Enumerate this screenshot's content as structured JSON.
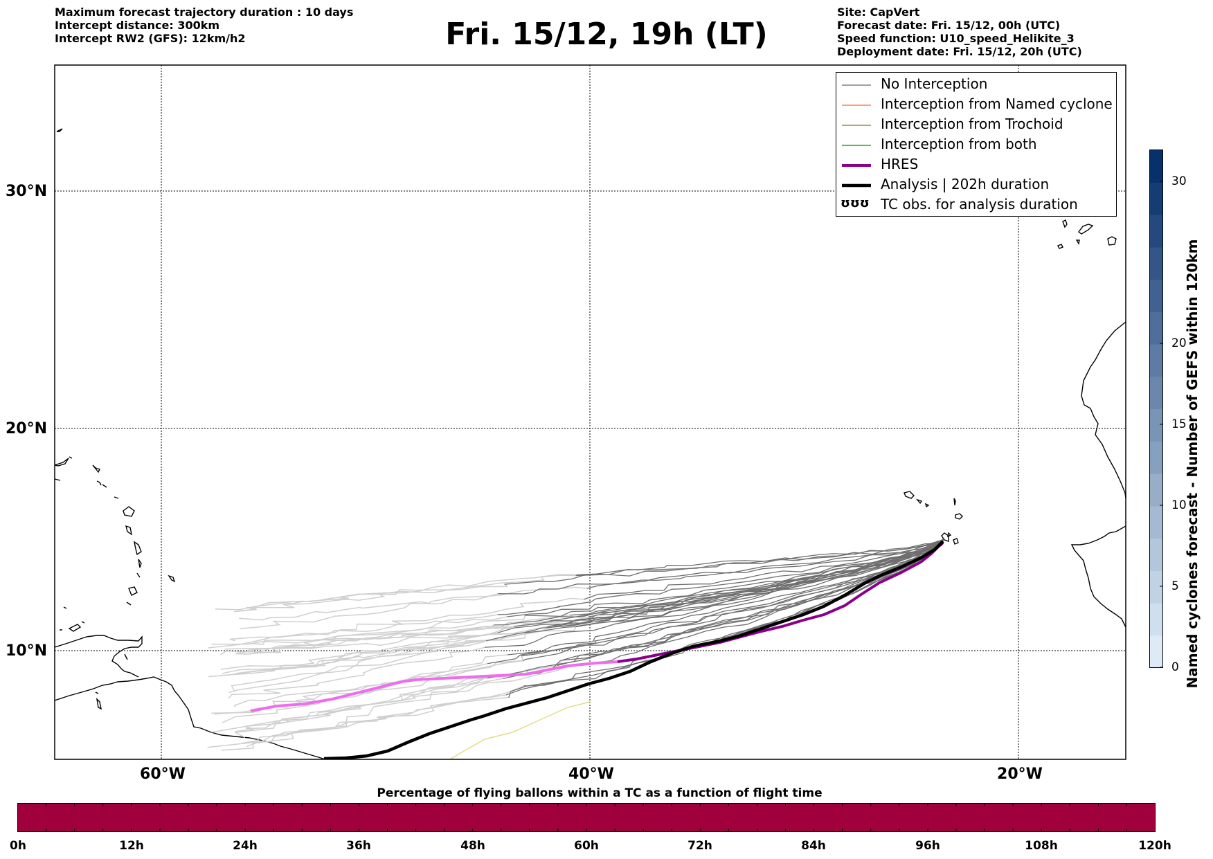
{
  "header_left": {
    "line1": "Maximum forecast trajectory duration : 10 days",
    "line2": "Intercept distance: 300km",
    "line3": "Intercept RW2 (GFS):  12km/h2"
  },
  "title": "Fri. 15/12, 19h (LT)",
  "header_right": {
    "line1": "Site: CapVert",
    "line2": "Forecast date: Fri. 15/12, 00h (UTC)",
    "line3": "Speed function: U10_speed_Helikite_3",
    "line4": "Deployment date: Fri. 15/12, 20h (UTC)"
  },
  "map": {
    "lat_labels": [
      "30°N",
      "20°N",
      "10°N"
    ],
    "lon_labels": [
      "60°W",
      "40°W",
      "20°W"
    ],
    "colors": {
      "no_interception": "#6e6e6e",
      "no_interception_late": "#cfcfcf",
      "named_cyclone": "#ff7f50",
      "trochoid": "#9a8f3c",
      "both": "#2ca02c",
      "hres": "#8b008b",
      "hres_late": "#ee6cee",
      "analysis": "#000000"
    }
  },
  "legend": {
    "items": [
      {
        "label": "No Interception",
        "color": "#808080",
        "style": "thin"
      },
      {
        "label": "Interception from Named cyclone",
        "color": "#ff7f50",
        "style": "thin"
      },
      {
        "label": "Interception from Trochoid",
        "color": "#9a8f3c",
        "style": "thin"
      },
      {
        "label": "Interception from both",
        "color": "#2ca02c",
        "style": "thin"
      },
      {
        "label": "HRES",
        "color": "#8b008b",
        "style": "thick"
      },
      {
        "label": "Analysis | 202h duration",
        "color": "#000000",
        "style": "thick"
      },
      {
        "label": "TC obs. for analysis duration",
        "color": "#000000",
        "style": "symbol",
        "symbol": "ʊʊʊ"
      }
    ]
  },
  "colorbar": {
    "title": "Named cyclones forecast - Number of GEFS within 120km",
    "ticks": [
      "0",
      "5",
      "10",
      "15",
      "20",
      "30"
    ],
    "max_value": 32,
    "color_low": "#deebf7",
    "color_high": "#08306b"
  },
  "flight_bar": {
    "title": "Percentage of flying ballons within a TC as a function of flight time",
    "fill_color": "#a0003c",
    "ticks": [
      "0h",
      "12h",
      "24h",
      "36h",
      "48h",
      "60h",
      "72h",
      "84h",
      "96h",
      "108h",
      "120h"
    ]
  }
}
